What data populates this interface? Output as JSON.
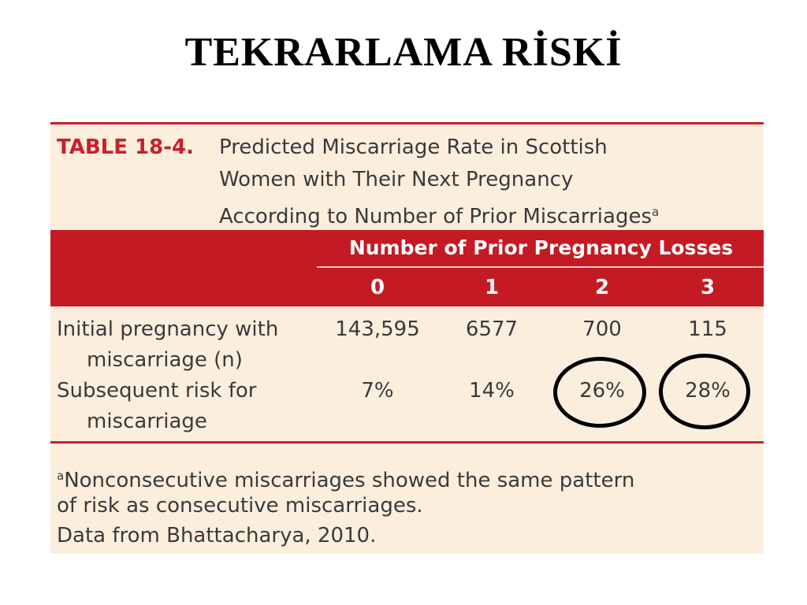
{
  "slide": {
    "title": "TEKRARLAMA RİSKİ"
  },
  "table": {
    "label": "TABLE 18-4.",
    "caption_lines": [
      "Predicted Miscarriage Rate in Scottish",
      "Women with Their Next Pregnancy",
      "According to Number of Prior Miscarriages"
    ],
    "caption_note_marker": "a",
    "group_header": "Number of Prior Pregnancy Losses",
    "columns": [
      "0",
      "1",
      "2",
      "3"
    ],
    "rows": [
      {
        "label_lines": [
          "Initial pregnancy with",
          "miscarriage (n)"
        ],
        "values": [
          "143,595",
          "6577",
          "700",
          "115"
        ]
      },
      {
        "label_lines": [
          "Subsequent risk for",
          "miscarriage"
        ],
        "values": [
          "7%",
          "14%",
          "26%",
          "28%"
        ]
      }
    ],
    "circled_cells": [
      "26%",
      "28%"
    ],
    "footnote_marker": "a",
    "footnote_lines": [
      "Nonconsecutive miscarriages showed the same pattern",
      "of risk as consecutive miscarriages.",
      "Data from Bhattacharya, 2010."
    ],
    "colors": {
      "accent_red": "#c41a23",
      "background": "#fbeedd",
      "text": "#3a3a3a"
    }
  }
}
